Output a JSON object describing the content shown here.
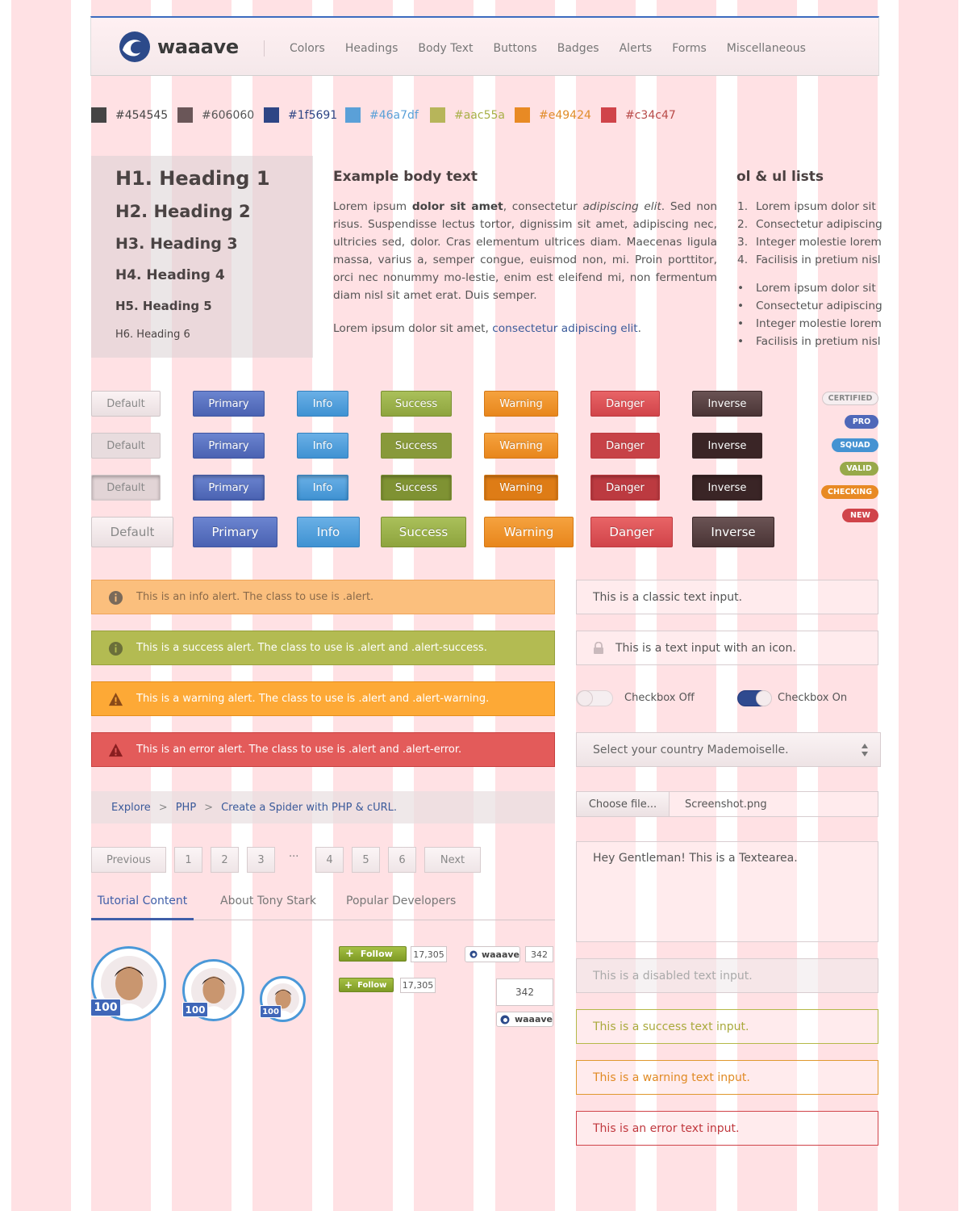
{
  "nav": {
    "logo_text": "waaave",
    "links": [
      "Colors",
      "Headings",
      "Body Text",
      "Buttons",
      "Badges",
      "Alerts",
      "Forms",
      "Miscellaneous"
    ]
  },
  "swatches": [
    {
      "label": "#454545",
      "color": "#454545",
      "text_color": "#454545"
    },
    {
      "label": "#606060",
      "color": "#6a5658",
      "text_color": "#555555"
    },
    {
      "label": "#1f5691",
      "color": "#2e4585",
      "text_color": "#2e4585"
    },
    {
      "label": "#46a7df",
      "color": "#5aa0d8",
      "text_color": "#5aa0d8"
    },
    {
      "label": "#aac55a",
      "color": "#b7b55a",
      "text_color": "#a8b048"
    },
    {
      "label": "#e49424",
      "color": "#e88a24",
      "text_color": "#e08c2a"
    },
    {
      "label": "#c34c47",
      "color": "#d0444a",
      "text_color": "#b84a48"
    }
  ],
  "headings": [
    "H1. Heading 1",
    "H2. Heading 2",
    "H3. Heading 3",
    "H4. Heading 4",
    "H5. Heading 5",
    "H6. Heading 6"
  ],
  "body_text": {
    "title": "Example body text",
    "p1_a": "Lorem ipsum ",
    "p1_bold": "dolor sit amet",
    "p1_b": ", consectetur ",
    "p1_italic": "adipiscing elit",
    "p1_c": ". Sed non risus. Suspendisse lectus tortor, dignissim sit amet, adipiscing nec, ultricies sed, dolor. Cras elementum ultrices diam. Maecenas ligula massa, varius a, semper congue, euismod non, mi. Proin porttitor, orci nec nonummy mo-lestie, enim est eleifend mi, non fermentum diam nisl sit amet erat. Duis semper.",
    "p2_a": "Lorem ipsum dolor sit amet, ",
    "p2_link": "consectetur adipiscing elit",
    "p2_b": "."
  },
  "lists": {
    "title": "ol & ul lists",
    "ol": [
      "Lorem ipsum dolor sit",
      "Consectetur adipiscing",
      "Integer molestie lorem",
      "Facilisis in pretium nisl"
    ],
    "ol_markers": [
      "1.",
      "2.",
      "3.",
      "4."
    ],
    "ul": [
      "Lorem ipsum dolor sit",
      "Consectetur adipiscing",
      "Integer molestie lorem",
      "Facilisis in pretium nisl"
    ],
    "ul_marker": "•"
  },
  "buttons": {
    "default": "Default",
    "primary": "Primary",
    "info": "Info",
    "success": "Success",
    "warning": "Warning",
    "danger": "Danger",
    "inverse": "Inverse"
  },
  "badges": [
    "CERTIFIED",
    "PRO",
    "SQUAD",
    "VALID",
    "CHECKING",
    "NEW"
  ],
  "alerts": {
    "info": "This is an info alert. The class to use is .alert.",
    "success": "This is a success alert. The class to use is .alert and .alert-success.",
    "warning": "This is a warning alert. The class to use is .alert and .alert-warning.",
    "error": "This is an error alert. The class to use is .alert and .alert-error."
  },
  "breadcrumb": {
    "items": [
      "Explore",
      "PHP",
      "Create a Spider with PHP & cURL."
    ],
    "sep": ">"
  },
  "pagination": {
    "prev": "Previous",
    "pages": [
      "1",
      "2",
      "3",
      "4",
      "5",
      "6"
    ],
    "ellipsis": "···",
    "next": "Next"
  },
  "tabs": [
    "Tutorial Content",
    "About Tony Stark",
    "Popular Developers"
  ],
  "avatars": {
    "count": "100"
  },
  "social": {
    "follow": "Follow",
    "follow_count": "17,305",
    "waaave_label": "waaave",
    "waaave_count": "342"
  },
  "form": {
    "classic": "This is a classic text input.",
    "icon_input": "This is a text input with an icon.",
    "checkbox_off": "Checkbox Off",
    "checkbox_on": "Checkbox On",
    "select": "Select your country Mademoiselle.",
    "file_button": "Choose file...",
    "file_name": "Screenshot.png",
    "textarea": "Hey Gentleman! This is a Textearea.",
    "disabled": "This is a disabled text input.",
    "success": "This is a success text input.",
    "warning": "This is a warning text input.",
    "error": "This is an error text input."
  }
}
